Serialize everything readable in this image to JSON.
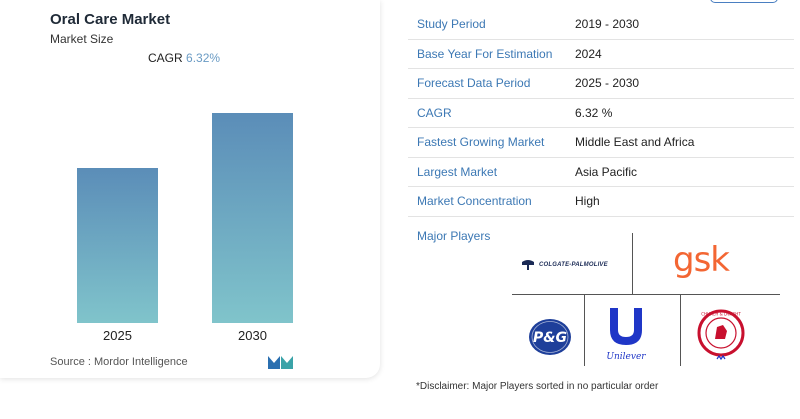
{
  "chart": {
    "title": "Oral Care Market",
    "subtitle": "Market Size",
    "cagr_label": "CAGR",
    "cagr_value": "6.32%",
    "source": "Source : Mordor Intelligence"
  },
  "chart_data": {
    "type": "bar",
    "categories": [
      "2025",
      "2030"
    ],
    "values": [
      155,
      210
    ],
    "title": "Oral Care Market",
    "subtitle": "Market Size",
    "xlabel": "",
    "ylabel": "",
    "grid": false,
    "colors": {
      "bar_top": "#5b8db8",
      "bar_bottom": "#80c4cb"
    }
  },
  "info": {
    "rows": [
      {
        "label": "Study Period",
        "value": "2019 - 2030"
      },
      {
        "label": "Base Year For Estimation",
        "value": "2024"
      },
      {
        "label": "Forecast Data Period",
        "value": "2025 - 2030"
      },
      {
        "label": "CAGR",
        "value": "6.32 %"
      },
      {
        "label": "Fastest Growing Market",
        "value": "Middle East and Africa"
      },
      {
        "label": "Largest Market",
        "value": "Asia Pacific"
      },
      {
        "label": "Market Concentration",
        "value": "High"
      }
    ],
    "major_players_label": "Major Players"
  },
  "players": {
    "colgate": "COLGATE-PALMOLIVE",
    "gsk": "gsk",
    "pg": "P&G",
    "unilever": "Unilever",
    "churchdwight": "CHURCH & DWIGHT CO., INC."
  },
  "disclaimer": "*Disclaimer: Major Players sorted in no particular order",
  "colors": {
    "accent": "#3c78b4",
    "gsk": "#f36633",
    "pg": "#1e3f9a",
    "unilever": "#1f36c7",
    "churchdwight": "#c8102e"
  }
}
